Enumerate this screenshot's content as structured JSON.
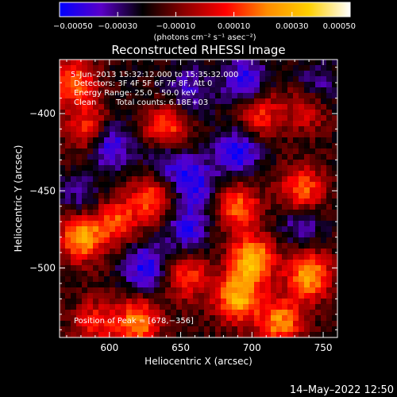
{
  "chart_data": {
    "type": "heatmap",
    "title": "Reconstructed RHESSI Image",
    "xlabel": "Heliocentric X (arcsec)",
    "ylabel": "Heliocentric Y (arcsec)",
    "xlim": [
      565,
      760
    ],
    "ylim": [
      -545,
      -365
    ],
    "x_ticks": [
      600,
      650,
      700,
      750
    ],
    "y_ticks": [
      -400,
      -450,
      -500
    ],
    "x_tick_labels": [
      "600",
      "650",
      "700",
      "750"
    ],
    "y_tick_labels": [
      "−400",
      "−450",
      "−500"
    ],
    "colorbar": {
      "range": [
        -0.0005,
        0.0005
      ],
      "ticks": [
        -0.0005,
        -0.0003,
        -0.0001,
        0.0001,
        0.0003,
        0.0005
      ],
      "tick_labels": [
        "−0.00050",
        "−0.00030",
        "−0.00010",
        "0.00010",
        "0.00030",
        "0.00050"
      ],
      "unit_label": "(photons cm⁻² s⁻¹ asec⁻²)",
      "colors": [
        "#0000ff",
        "#5a00c8",
        "#000000",
        "#8b0000",
        "#ff0000",
        "#ff8c00",
        "#ffd000",
        "#ffffff"
      ]
    },
    "annotations": {
      "time_range": "5–Jun–2013 15:32:12.000 to 15:35:32.000",
      "detectors": "Detectors: 3F 4F 5F 6F 7F 8F, Att 0",
      "energy_range": "Energy Range: 25.0 – 50.0 keV",
      "clean_label": "Clean",
      "total_counts": "Total counts: 6.18E+03",
      "peak": "Position of Peak = [678,−356]"
    },
    "hotspots": [
      {
        "x": 575,
        "y": -380,
        "a": 0.00035
      },
      {
        "x": 585,
        "y": -410,
        "a": 0.0003
      },
      {
        "x": 640,
        "y": -410,
        "a": 0.00035
      },
      {
        "x": 580,
        "y": -480,
        "a": 0.00045
      },
      {
        "x": 605,
        "y": -470,
        "a": 0.0003
      },
      {
        "x": 630,
        "y": -455,
        "a": 0.00032
      },
      {
        "x": 705,
        "y": -400,
        "a": 0.0003
      },
      {
        "x": 740,
        "y": -395,
        "a": 0.0003
      },
      {
        "x": 690,
        "y": -460,
        "a": 0.00035
      },
      {
        "x": 735,
        "y": -450,
        "a": 0.00038
      },
      {
        "x": 700,
        "y": -495,
        "a": 0.0005
      },
      {
        "x": 740,
        "y": -505,
        "a": 0.00045
      },
      {
        "x": 690,
        "y": -520,
        "a": 0.00045
      },
      {
        "x": 720,
        "y": -535,
        "a": 0.0004
      },
      {
        "x": 620,
        "y": -535,
        "a": 0.0004
      },
      {
        "x": 590,
        "y": -535,
        "a": 0.00025
      },
      {
        "x": 655,
        "y": -505,
        "a": 0.0003
      },
      {
        "x": 655,
        "y": -385,
        "a": -0.0002
      },
      {
        "x": 695,
        "y": -380,
        "a": -0.0003
      },
      {
        "x": 745,
        "y": -385,
        "a": -0.00025
      },
      {
        "x": 690,
        "y": -425,
        "a": -0.0003
      },
      {
        "x": 660,
        "y": -445,
        "a": -0.00028
      },
      {
        "x": 600,
        "y": -420,
        "a": -0.0003
      },
      {
        "x": 625,
        "y": -500,
        "a": -0.0003
      },
      {
        "x": 655,
        "y": -475,
        "a": -0.00025
      },
      {
        "x": 735,
        "y": -470,
        "a": -0.0002
      },
      {
        "x": 580,
        "y": -455,
        "a": -0.00015
      },
      {
        "x": 640,
        "y": -430,
        "a": -0.00022
      }
    ],
    "grid": false
  },
  "footer": {
    "date": "14–May–2022 12:50"
  }
}
